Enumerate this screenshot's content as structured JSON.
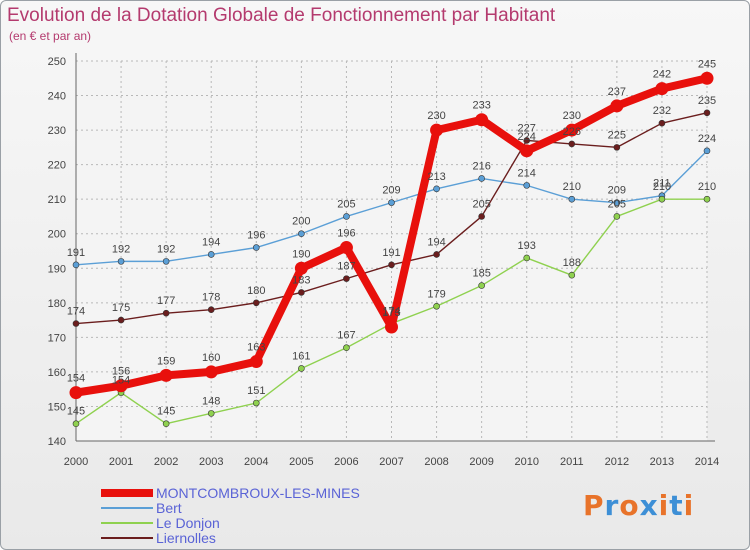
{
  "header": {
    "title": "Evolution de la Dotation Globale de Fonctionnement par Habitant",
    "subtitle": "(en € et par an)"
  },
  "logo": {
    "text": "Proxiti",
    "colors": [
      "#e8732a",
      "#3d8fd6",
      "#e8732a",
      "#3d8fd6",
      "#e8732a",
      "#3d8fd6",
      "#e8732a"
    ]
  },
  "chart_data": {
    "type": "line",
    "x": [
      "2000",
      "2001",
      "2002",
      "2003",
      "2004",
      "2005",
      "2006",
      "2007",
      "2008",
      "2009",
      "2010",
      "2011",
      "2012",
      "2013",
      "2014"
    ],
    "ylim": [
      140,
      250
    ],
    "yticks": [
      "140",
      "150",
      "160",
      "170",
      "180",
      "190",
      "200",
      "210",
      "220",
      "230",
      "240",
      "250"
    ],
    "grid": true,
    "legend_position": "bottom-left",
    "series": [
      {
        "name": "MONTCOMBROUX-LES-MINES",
        "color": "#e8100c",
        "highlight": true,
        "values": [
          154,
          156,
          159,
          160,
          163,
          190,
          196,
          173,
          230,
          233,
          224,
          230,
          237,
          242,
          245
        ],
        "labels": [
          "154",
          "156",
          "159",
          "160",
          "163",
          "190",
          "196",
          "173",
          "230",
          "233",
          "224",
          "230",
          "237",
          "242",
          "245"
        ]
      },
      {
        "name": "Bert",
        "color": "#5b9fd6",
        "values": [
          191,
          192,
          192,
          194,
          196,
          200,
          205,
          209,
          213,
          216,
          214,
          210,
          209,
          211,
          224
        ],
        "labels": [
          "191",
          "192",
          "192",
          "194",
          "196",
          "200",
          "205",
          "209",
          "213",
          "216",
          "214",
          "210",
          "209",
          "211",
          "224"
        ]
      },
      {
        "name": "Le Donjon",
        "color": "#8fd14f",
        "values": [
          145,
          154,
          145,
          148,
          151,
          161,
          167,
          174,
          179,
          185,
          193,
          188,
          205,
          210,
          210
        ],
        "labels": [
          "145",
          "154",
          "145",
          "148",
          "151",
          "161",
          "167",
          "174",
          "179",
          "185",
          "193",
          "188",
          "205",
          "210",
          "210"
        ]
      },
      {
        "name": "Liernolles",
        "color": "#6b1e1e",
        "values": [
          174,
          175,
          177,
          178,
          180,
          183,
          187,
          191,
          194,
          205,
          227,
          226,
          225,
          232,
          235
        ],
        "labels": [
          "174",
          "175",
          "177",
          "178",
          "180",
          "183",
          "187",
          "191",
          "194",
          "205",
          "227",
          "226",
          "225",
          "232",
          "235"
        ]
      }
    ]
  }
}
